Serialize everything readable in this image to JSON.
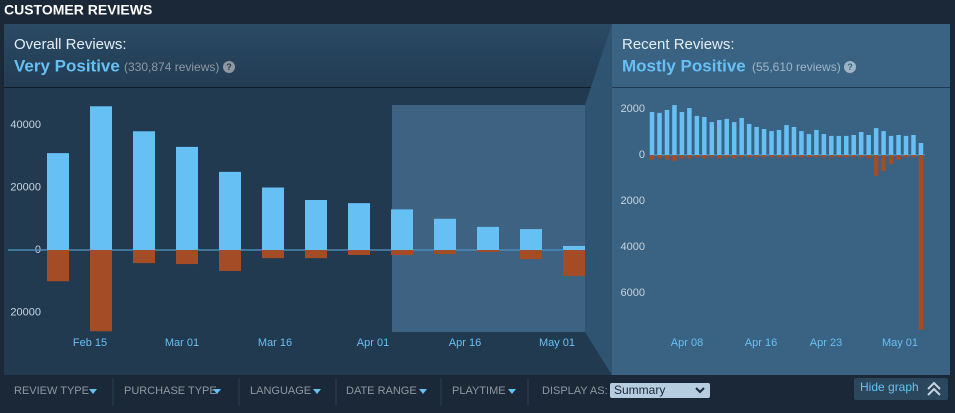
{
  "header": {
    "title": "CUSTOMER REVIEWS"
  },
  "overall": {
    "label": "Overall Reviews:",
    "rating": "Very Positive",
    "count": "(330,874 reviews)",
    "help": "?"
  },
  "recent": {
    "label": "Recent Reviews:",
    "rating": "Mostly Positive",
    "count": "(55,610 reviews)",
    "help": "?"
  },
  "chart_data": [
    {
      "type": "bar",
      "categories": [
        null,
        null,
        null,
        null,
        null,
        null,
        null,
        null,
        null,
        null,
        null,
        null,
        null
      ],
      "x_tick_labels": [
        "Feb 15",
        "Mar 01",
        "Mar 16",
        "Apr 01",
        "Apr 16",
        "May 01"
      ],
      "series": [
        {
          "color": "#66c0f4",
          "values": [
            31000,
            46000,
            38000,
            33000,
            25000,
            20000,
            16000,
            15000,
            13000,
            10000,
            7400,
            6700,
            1300
          ]
        },
        {
          "color": "#a34c25",
          "values": [
            -10000,
            -26000,
            -4200,
            -4500,
            -6700,
            -2600,
            -2600,
            -1600,
            -1600,
            -1300,
            -600,
            -2900,
            -8300
          ]
        }
      ],
      "ylim": [
        -28000,
        48000
      ],
      "yticks": [
        40000,
        20000,
        0,
        {
          "value": -20000,
          "label": "20000"
        }
      ]
    },
    {
      "type": "bar",
      "categories": [
        null,
        null,
        null,
        null,
        null,
        null,
        null,
        null,
        null,
        null,
        null,
        null,
        null,
        null,
        null,
        null,
        null,
        null,
        null,
        null,
        null,
        null,
        null,
        null,
        null,
        null,
        null,
        null,
        null,
        null,
        null,
        null,
        null,
        null,
        null,
        null,
        null
      ],
      "x_tick_labels": [
        "Apr 08",
        "Apr 16",
        "Apr 23",
        "May 01"
      ],
      "series": [
        {
          "color": "#66c0f4",
          "values": [
            1870,
            1830,
            1960,
            2170,
            1870,
            2040,
            1700,
            1650,
            1430,
            1520,
            1570,
            1430,
            1610,
            1350,
            1220,
            1130,
            1040,
            1090,
            1300,
            1220,
            1040,
            910,
            1090,
            910,
            830,
            830,
            830,
            870,
            1000,
            870,
            1170,
            1040,
            830,
            870,
            830,
            870,
            520
          ]
        },
        {
          "color": "#a34c25",
          "values": [
            -200,
            -150,
            -200,
            -250,
            -150,
            -150,
            -100,
            -150,
            -100,
            -150,
            -100,
            -150,
            -100,
            -100,
            -100,
            -100,
            -100,
            -100,
            -100,
            -100,
            -100,
            -100,
            -100,
            -100,
            -100,
            -100,
            -100,
            -100,
            -100,
            -150,
            -900,
            -700,
            -400,
            -200,
            -100,
            -100,
            -7600
          ]
        }
      ],
      "ylim": [
        -8000,
        2600
      ],
      "yticks": [
        2000,
        0,
        {
          "value": -2000,
          "label": "2000"
        },
        {
          "value": -4000,
          "label": "4000"
        },
        {
          "value": -6000,
          "label": "6000"
        }
      ]
    }
  ],
  "filters": [
    "REVIEW TYPE",
    "PURCHASE TYPE",
    "LANGUAGE",
    "DATE RANGE",
    "PLAYTIME"
  ],
  "display_as": {
    "label": "DISPLAY AS:",
    "value": "Summary"
  },
  "hide_graph": "Hide graph"
}
